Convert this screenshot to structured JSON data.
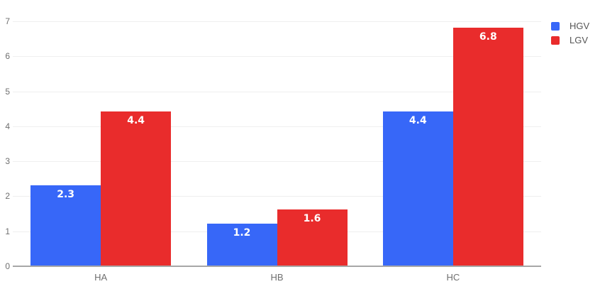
{
  "chart_data": {
    "type": "bar",
    "title": "",
    "xlabel": "",
    "ylabel": "",
    "categories": [
      "HA",
      "HB",
      "HC"
    ],
    "series": [
      {
        "name": "HGV",
        "color": "#3767F8",
        "values": [
          2.3,
          1.2,
          4.4
        ],
        "labels": [
          "2.3",
          "1.2",
          "4.4"
        ]
      },
      {
        "name": "LGV",
        "color": "#E92C2C",
        "values": [
          4.4,
          1.6,
          6.8
        ],
        "labels": [
          "4.4",
          "1.6",
          "6.8"
        ]
      }
    ],
    "ylim": [
      0,
      7
    ],
    "ytick_labels": [
      "0",
      "1",
      "2",
      "3",
      "4",
      "5",
      "6",
      "7"
    ],
    "grid": true,
    "legend_position": "top-right",
    "bar_label_color": "#ffffff",
    "gridline_color": "#efefef",
    "baseline_color": "#a7a7a7"
  }
}
